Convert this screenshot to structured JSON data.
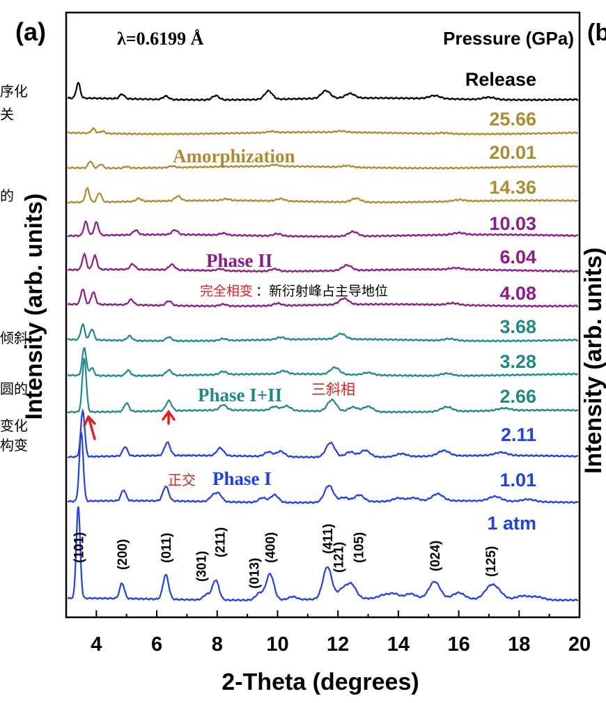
{
  "chart_data": {
    "type": "line",
    "panel_label": "(a)",
    "next_panel_label": "(b",
    "wavelength_label": "λ=0.6199 Å",
    "legend_title": "Pressure (GPa)",
    "xlabel": "2-Theta (degrees)",
    "ylabel": "Intensity (arb. units)",
    "right_panel_ylabel_fragment": "Intensity (arb. units)",
    "xlim": [
      3,
      20
    ],
    "xticks": [
      "4",
      "6",
      "8",
      "10",
      "12",
      "14",
      "16",
      "18",
      "20"
    ],
    "colors": {
      "release": "#000000",
      "amorphous": "#b08a2e",
      "phase_ii": "#8c1a8c",
      "phase_mix": "#1e8a88",
      "phase_i": "#1f3ff0",
      "annotation_red": "#e02020"
    },
    "series": [
      {
        "name": "Release",
        "color": "#000000",
        "peaks": [
          [
            3.4,
            1.0
          ],
          [
            4.85,
            0.3
          ],
          [
            6.3,
            0.22
          ],
          [
            7.95,
            0.28
          ],
          [
            9.7,
            0.55
          ],
          [
            11.6,
            0.5
          ],
          [
            12.4,
            0.3
          ],
          [
            15.2,
            0.2
          ],
          [
            17.0,
            0.15
          ]
        ]
      },
      {
        "name": "25.66",
        "color": "#b08a2e",
        "peaks": [
          [
            3.9,
            0.3
          ],
          [
            4.2,
            0.15
          ],
          [
            9.8,
            0.08
          ],
          [
            12.1,
            0.08
          ],
          [
            15.5,
            0.06
          ]
        ]
      },
      {
        "name": "20.01",
        "color": "#b08a2e",
        "peaks": [
          [
            3.8,
            0.45
          ],
          [
            4.15,
            0.25
          ],
          [
            5.0,
            0.1
          ],
          [
            6.5,
            0.1
          ],
          [
            9.9,
            0.1
          ],
          [
            12.3,
            0.1
          ]
        ]
      },
      {
        "name": "14.36",
        "color": "#b08a2e",
        "peaks": [
          [
            3.7,
            0.9
          ],
          [
            4.1,
            0.6
          ],
          [
            5.4,
            0.2
          ],
          [
            6.7,
            0.3
          ],
          [
            8.3,
            0.1
          ],
          [
            10.1,
            0.15
          ],
          [
            12.6,
            0.25
          ],
          [
            16.0,
            0.1
          ]
        ]
      },
      {
        "name": "10.03",
        "color": "#8c1a8c",
        "peaks": [
          [
            3.65,
            0.9
          ],
          [
            4.0,
            0.85
          ],
          [
            5.3,
            0.3
          ],
          [
            6.6,
            0.3
          ],
          [
            8.2,
            0.12
          ],
          [
            10.0,
            0.15
          ],
          [
            12.5,
            0.3
          ],
          [
            16.0,
            0.12
          ]
        ]
      },
      {
        "name": "6.04",
        "color": "#8c1a8c",
        "peaks": [
          [
            3.6,
            1.0
          ],
          [
            3.95,
            0.9
          ],
          [
            5.2,
            0.35
          ],
          [
            6.5,
            0.35
          ],
          [
            8.1,
            0.12
          ],
          [
            9.9,
            0.15
          ],
          [
            12.3,
            0.35
          ],
          [
            15.9,
            0.1
          ]
        ]
      },
      {
        "name": "4.08",
        "color": "#8c1a8c",
        "peaks": [
          [
            3.55,
            1.0
          ],
          [
            3.9,
            0.8
          ],
          [
            5.15,
            0.35
          ],
          [
            6.4,
            0.3
          ],
          [
            8.2,
            0.12
          ],
          [
            10.0,
            0.15
          ],
          [
            12.2,
            0.4
          ],
          [
            15.8,
            0.12
          ]
        ]
      },
      {
        "name": "3.68",
        "color": "#1e8a88",
        "peaks": [
          [
            3.55,
            1.0
          ],
          [
            3.85,
            0.7
          ],
          [
            5.1,
            0.3
          ],
          [
            6.4,
            0.25
          ],
          [
            8.2,
            0.12
          ],
          [
            10.1,
            0.15
          ],
          [
            12.1,
            0.35
          ],
          [
            15.7,
            0.12
          ]
        ]
      },
      {
        "name": "3.28",
        "color": "#1e8a88",
        "peaks": [
          [
            3.6,
            1.8
          ],
          [
            3.85,
            0.5
          ],
          [
            5.05,
            0.35
          ],
          [
            6.4,
            0.35
          ],
          [
            8.2,
            0.2
          ],
          [
            10.2,
            0.2
          ],
          [
            11.9,
            0.45
          ],
          [
            13.0,
            0.15
          ],
          [
            15.6,
            0.15
          ]
        ]
      },
      {
        "name": "2.66",
        "color": "#1e8a88",
        "peaks": [
          [
            3.6,
            3.5
          ],
          [
            5.0,
            0.55
          ],
          [
            6.4,
            0.65
          ],
          [
            8.2,
            0.35
          ],
          [
            9.9,
            0.25
          ],
          [
            10.3,
            0.3
          ],
          [
            11.8,
            0.75
          ],
          [
            12.5,
            0.3
          ],
          [
            13.0,
            0.35
          ],
          [
            15.6,
            0.3
          ],
          [
            17.5,
            0.15
          ]
        ]
      },
      {
        "name": "2.11",
        "color": "#1f3ff0",
        "peaks": [
          [
            3.55,
            3.0
          ],
          [
            4.95,
            0.6
          ],
          [
            6.35,
            0.85
          ],
          [
            8.1,
            0.5
          ],
          [
            9.7,
            0.3
          ],
          [
            10.1,
            0.35
          ],
          [
            11.75,
            0.95
          ],
          [
            12.4,
            0.35
          ],
          [
            12.9,
            0.45
          ],
          [
            14.1,
            0.2
          ],
          [
            15.5,
            0.35
          ],
          [
            17.4,
            0.2
          ]
        ]
      },
      {
        "name": "1.01",
        "color": "#1f3ff0",
        "peaks": [
          [
            3.5,
            4.5
          ],
          [
            4.9,
            0.7
          ],
          [
            6.3,
            0.95
          ],
          [
            7.85,
            0.35
          ],
          [
            8.05,
            0.5
          ],
          [
            9.5,
            0.3
          ],
          [
            9.9,
            0.5
          ],
          [
            11.7,
            1.1
          ],
          [
            12.2,
            0.3
          ],
          [
            12.7,
            0.45
          ],
          [
            14.0,
            0.2
          ],
          [
            14.5,
            0.2
          ],
          [
            15.3,
            0.45
          ],
          [
            17.2,
            0.3
          ],
          [
            18.3,
            0.15
          ]
        ]
      },
      {
        "name": "1 atm",
        "color": "#1f3ff0",
        "peaks": [
          [
            3.4,
            6.0
          ],
          [
            4.85,
            1.0
          ],
          [
            6.3,
            1.6
          ],
          [
            7.65,
            0.35
          ],
          [
            7.95,
            1.3
          ],
          [
            9.4,
            0.45
          ],
          [
            9.75,
            1.7
          ],
          [
            10.5,
            0.2
          ],
          [
            11.65,
            2.1
          ],
          [
            12.15,
            0.6
          ],
          [
            12.45,
            0.9
          ],
          [
            13.5,
            0.2
          ],
          [
            13.85,
            0.3
          ],
          [
            14.4,
            0.3
          ],
          [
            15.2,
            1.1
          ],
          [
            16.0,
            0.4
          ],
          [
            17.05,
            0.75
          ],
          [
            17.3,
            0.4
          ],
          [
            18.1,
            0.25
          ],
          [
            18.6,
            0.2
          ]
        ]
      }
    ],
    "hkl_labels": [
      {
        "label": "(101)",
        "x": 3.4
      },
      {
        "label": "(200)",
        "x": 4.85
      },
      {
        "label": "(011)",
        "x": 6.3
      },
      {
        "label": "(301)",
        "x": 7.65
      },
      {
        "label": "(211)",
        "x": 7.95
      },
      {
        "label": "(013)",
        "x": 9.4
      },
      {
        "label": "(400)",
        "x": 9.75
      },
      {
        "label": "(411)",
        "x": 11.65
      },
      {
        "label": "(121)",
        "x": 12.15
      },
      {
        "label": "(105)",
        "x": 12.45
      },
      {
        "label": "(024)",
        "x": 15.2
      },
      {
        "label": "(125)",
        "x": 17.05
      }
    ],
    "phase_labels": {
      "amorphization": "Amorphization",
      "phase_ii": "Phase II",
      "phase_mix": "Phase I+II",
      "phase_i": "Phase I"
    },
    "annotations": {
      "phase_transition_red": "完全相变",
      "phase_transition_black": "：新衍射峰占主导地位",
      "triclinic": "三斜相",
      "orthorhombic": "正交"
    },
    "left_margin_fragments": [
      "序化",
      "关",
      "的",
      "倾斜",
      "圆的",
      "变化",
      "构变"
    ]
  }
}
